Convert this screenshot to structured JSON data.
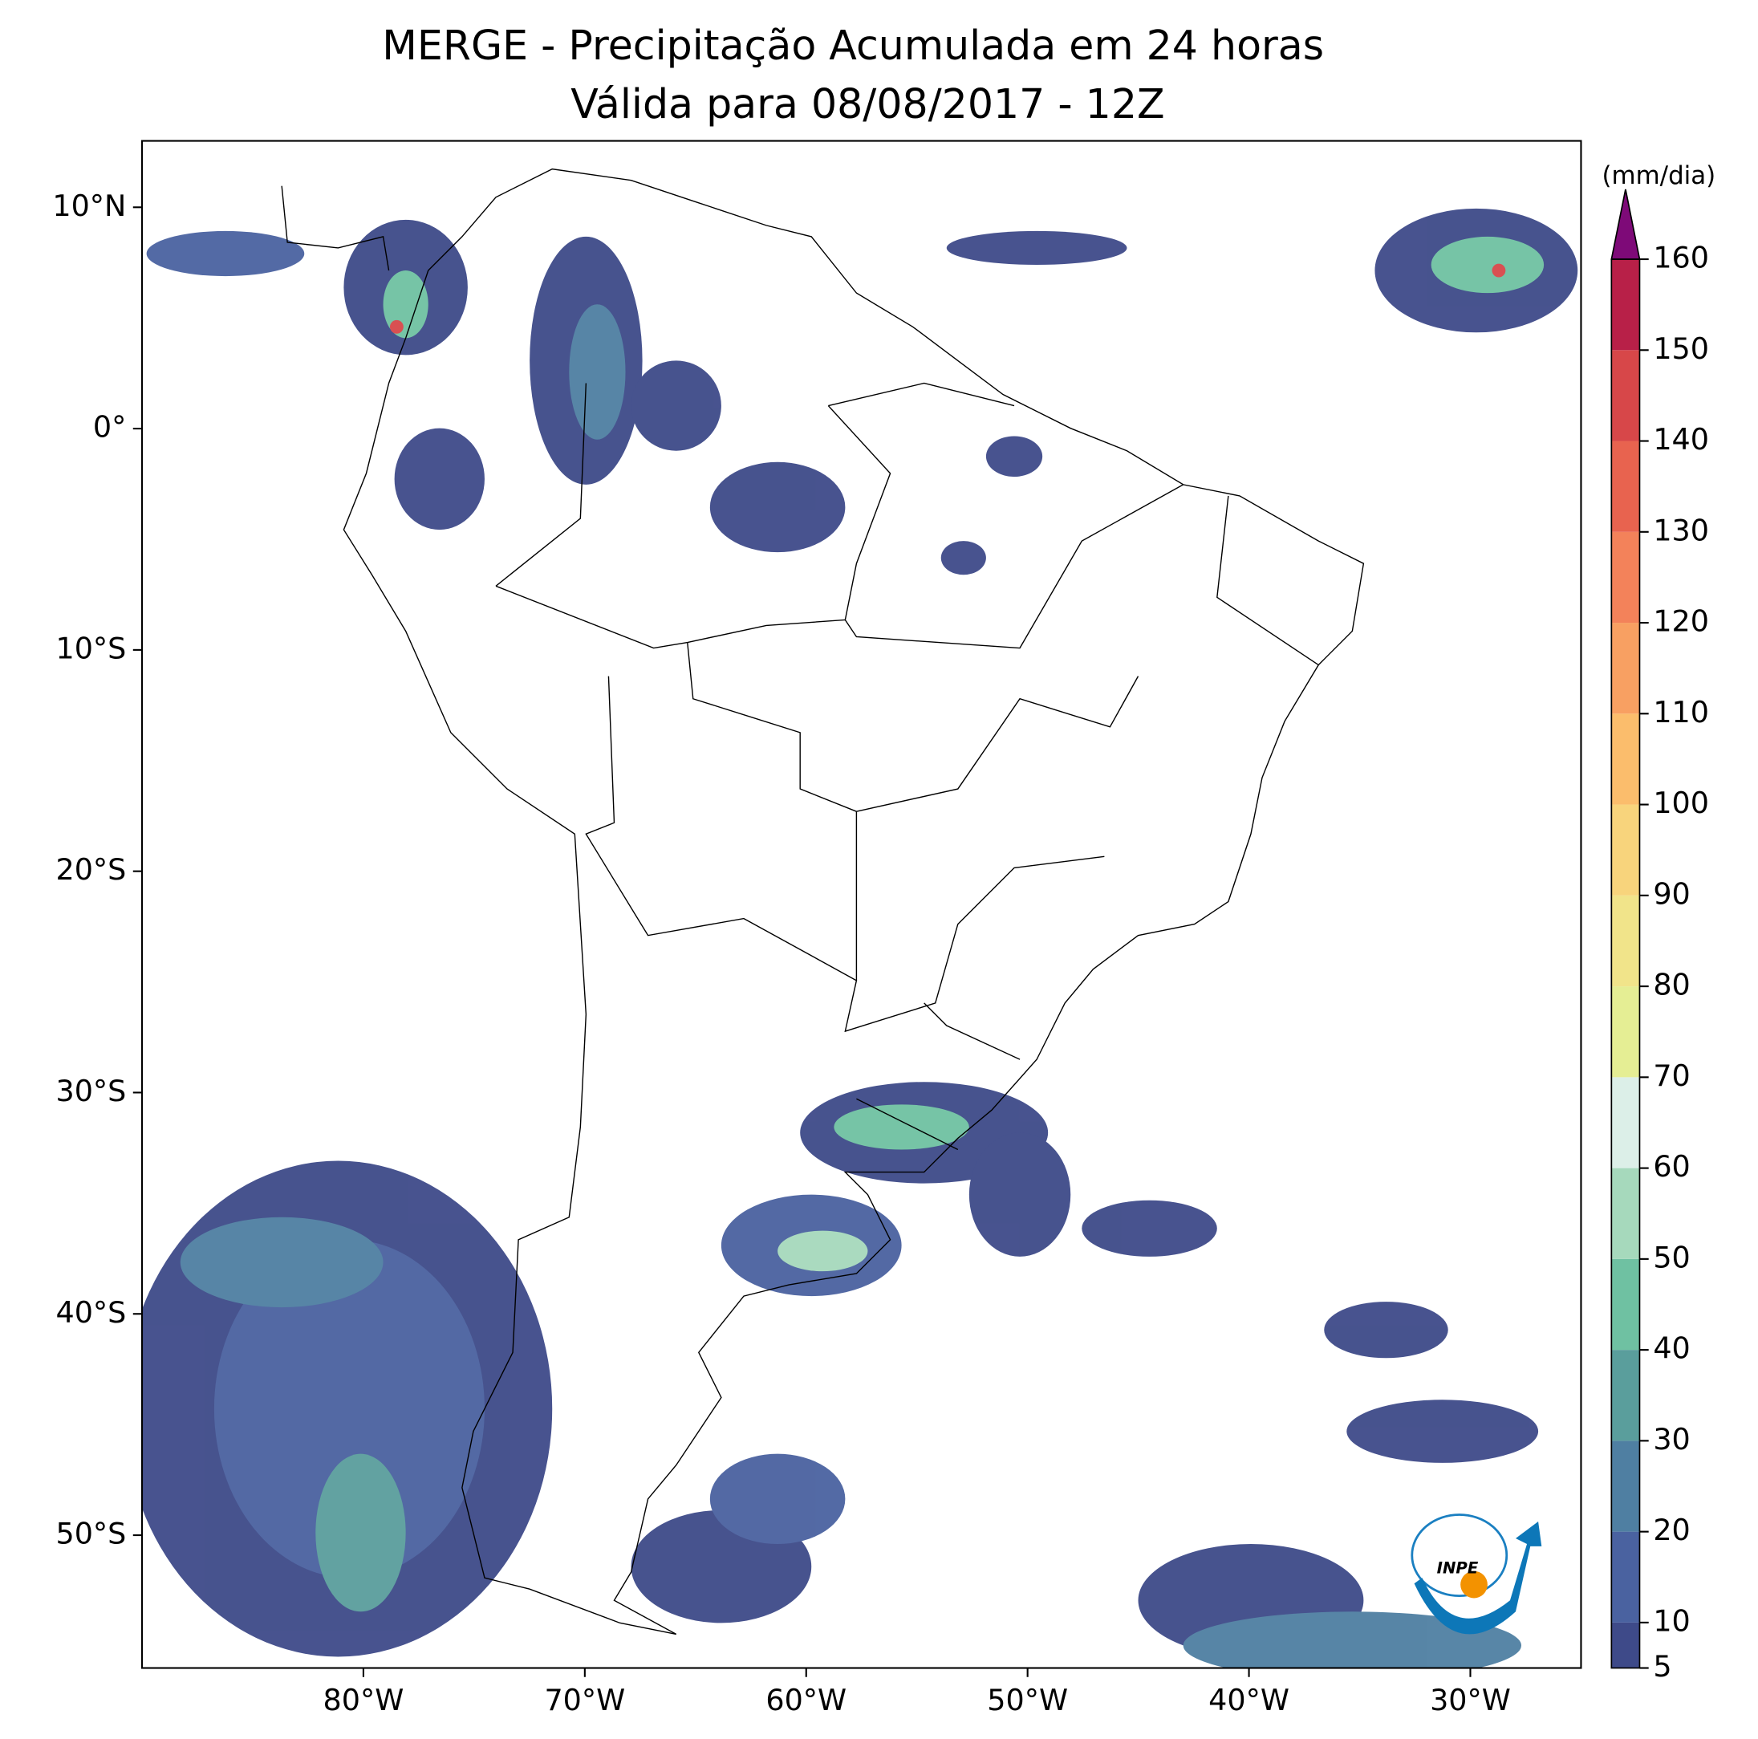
{
  "title": "MERGE - Precipitação Acumulada em 24 horas",
  "subtitle": "Válida para 08/08/2017 - 12Z",
  "map": {
    "xlim": [
      -90,
      -25
    ],
    "ylim": [
      -56,
      13
    ],
    "xticks": [
      {
        "value": -80,
        "label": "80°W"
      },
      {
        "value": -70,
        "label": "70°W"
      },
      {
        "value": -60,
        "label": "60°W"
      },
      {
        "value": -50,
        "label": "50°W"
      },
      {
        "value": -40,
        "label": "40°W"
      },
      {
        "value": -30,
        "label": "30°W"
      }
    ],
    "yticks": [
      {
        "value": 10,
        "label": "10°N"
      },
      {
        "value": 0,
        "label": "0°"
      },
      {
        "value": -10,
        "label": "10°S"
      },
      {
        "value": -20,
        "label": "20°S"
      },
      {
        "value": -30,
        "label": "30°S"
      },
      {
        "value": -40,
        "label": "40°S"
      },
      {
        "value": -50,
        "label": "50°S"
      }
    ]
  },
  "colorbar": {
    "label": "(mm/dia)",
    "ticks": [
      5,
      10,
      20,
      30,
      40,
      50,
      60,
      70,
      80,
      90,
      100,
      110,
      120,
      130,
      140,
      150,
      160
    ],
    "colors": [
      "#3e4a89",
      "#4a62a0",
      "#4f7fa2",
      "#5a9e9c",
      "#6fc1a2",
      "#a6d9bc",
      "#dcefe8",
      "#e5ee94",
      "#f1e48a",
      "#f8d47c",
      "#fbbd6c",
      "#f8a062",
      "#f3825a",
      "#e8634f",
      "#d74749",
      "#b82048",
      "#7e0a78"
    ]
  },
  "logo": "INPE"
}
